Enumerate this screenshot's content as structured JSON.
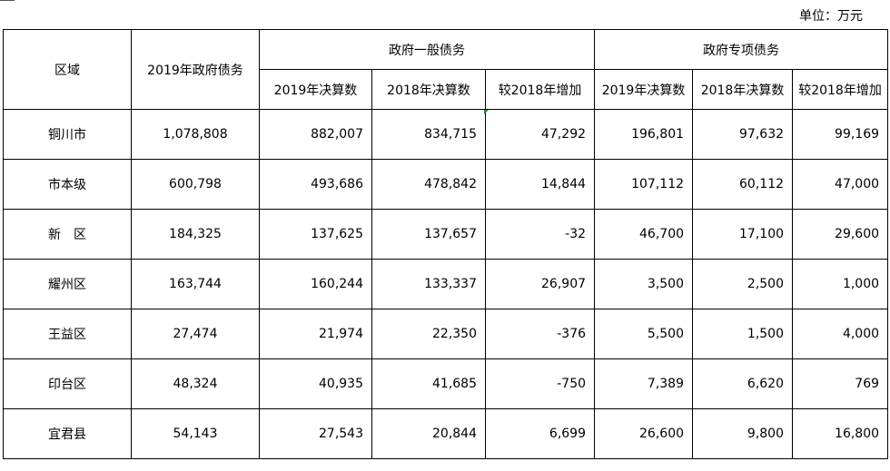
{
  "unit_label": "单位：万元",
  "header": {
    "region": "区域",
    "total_2019": "2019年政府债务",
    "general_group": "政府一般债务",
    "special_group": "政府专项债务",
    "general_sub": [
      "2019年决算数",
      "2018年决算数",
      "较2018年增加"
    ],
    "special_sub": [
      "2019年决算数",
      "2018年决算数",
      "较2018年增加"
    ]
  },
  "rows": [
    {
      "region": "铜川市",
      "total": "1,078,808",
      "g2019": "882,007",
      "g2018": "834,715",
      "gdiff": "47,292",
      "s2019": "196,801",
      "s2018": "97,632",
      "sdiff": "99,169"
    },
    {
      "region": "市本级",
      "total": "600,798",
      "g2019": "493,686",
      "g2018": "478,842",
      "gdiff": "14,844",
      "s2019": "107,112",
      "s2018": "60,112",
      "sdiff": "47,000"
    },
    {
      "region": "新　区",
      "total": "184,325",
      "g2019": "137,625",
      "g2018": "137,657",
      "gdiff": "-32",
      "s2019": "46,700",
      "s2018": "17,100",
      "sdiff": "29,600"
    },
    {
      "region": "耀州区",
      "total": "163,744",
      "g2019": "160,244",
      "g2018": "133,337",
      "gdiff": "26,907",
      "s2019": "3,500",
      "s2018": "2,500",
      "sdiff": "1,000"
    },
    {
      "region": "王益区",
      "total": "27,474",
      "g2019": "21,974",
      "g2018": "22,350",
      "gdiff": "-376",
      "s2019": "5,500",
      "s2018": "1,500",
      "sdiff": "4,000"
    },
    {
      "region": "印台区",
      "total": "48,324",
      "g2019": "40,935",
      "g2018": "41,685",
      "gdiff": "-750",
      "s2019": "7,389",
      "s2018": "6,620",
      "sdiff": "769"
    },
    {
      "region": "宜君县",
      "total": "54,143",
      "g2019": "27,543",
      "g2018": "20,844",
      "gdiff": "6,699",
      "s2019": "26,600",
      "s2018": "9,800",
      "sdiff": "16,800"
    }
  ]
}
